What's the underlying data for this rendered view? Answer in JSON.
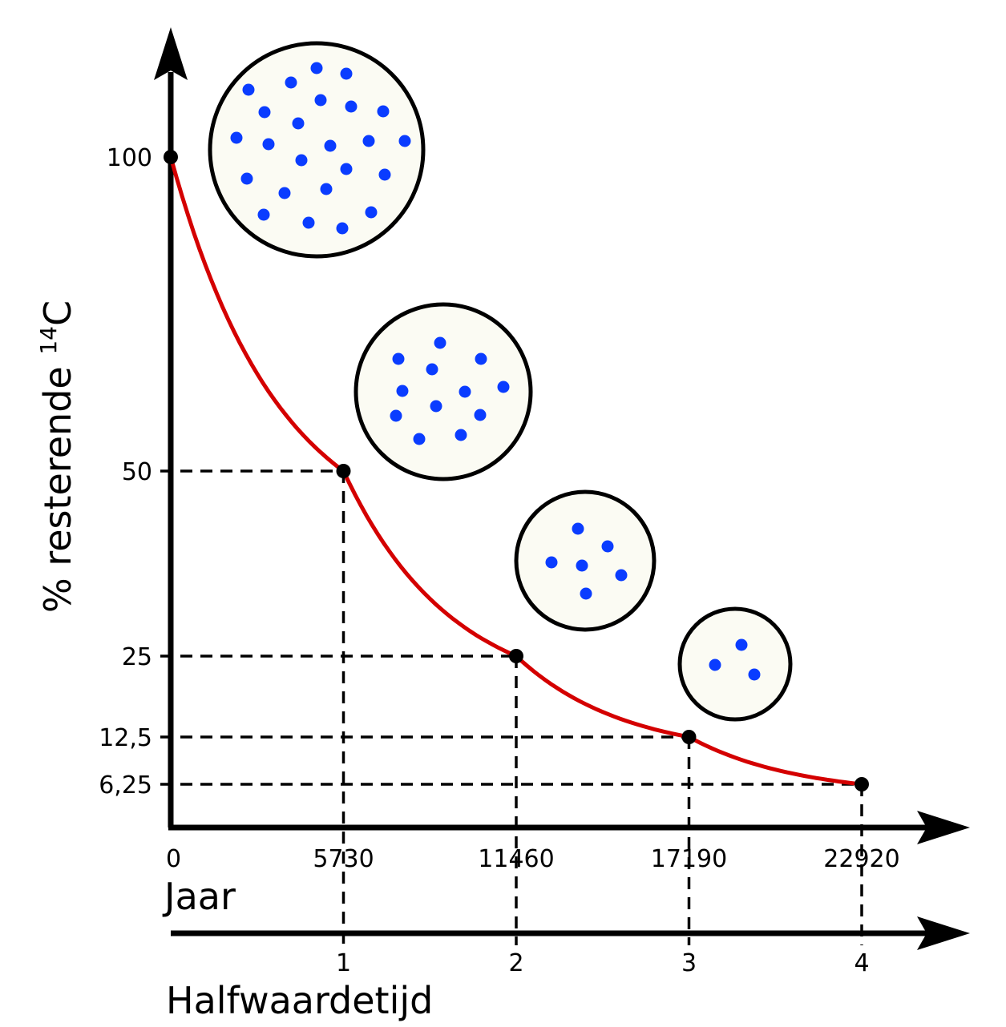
{
  "chart_data": {
    "type": "line",
    "title": "",
    "xlabel": "Jaar",
    "ylabel_prefix": "% resterende ",
    "ylabel_sup": "14",
    "ylabel_suffix": "C",
    "secondary_xlabel": "Halfwaardetijd",
    "x_ticks": [
      "0",
      "5730",
      "11460",
      "17190",
      "22920"
    ],
    "x_tick_values": [
      0,
      5730,
      11460,
      17190,
      22920
    ],
    "halflife_ticks": [
      "1",
      "2",
      "3",
      "4"
    ],
    "halflife_values": [
      1,
      2,
      3,
      4
    ],
    "y_ticks": [
      "100",
      "50",
      "25",
      "12,5",
      "6,25"
    ],
    "y_tick_values": [
      100,
      50,
      25,
      12.5,
      6.25
    ],
    "x_range": [
      0,
      22920
    ],
    "series": [
      {
        "x": [
          0,
          5730,
          11460,
          17190,
          22920
        ],
        "y": [
          100,
          50,
          25,
          12.5,
          6.25
        ],
        "color": "#d40000"
      }
    ],
    "atom_samples": [
      {
        "half_lives": 0,
        "atoms": 24
      },
      {
        "half_lives": 1,
        "atoms": 12
      },
      {
        "half_lives": 2,
        "atoms": 6
      },
      {
        "half_lives": 3,
        "atoms": 3
      }
    ],
    "colors": {
      "curve": "#d40000",
      "atom": "#0a3cff",
      "circle_fill": "#fbfbf3",
      "axis": "#000000"
    },
    "grid": false,
    "legend": "none"
  }
}
